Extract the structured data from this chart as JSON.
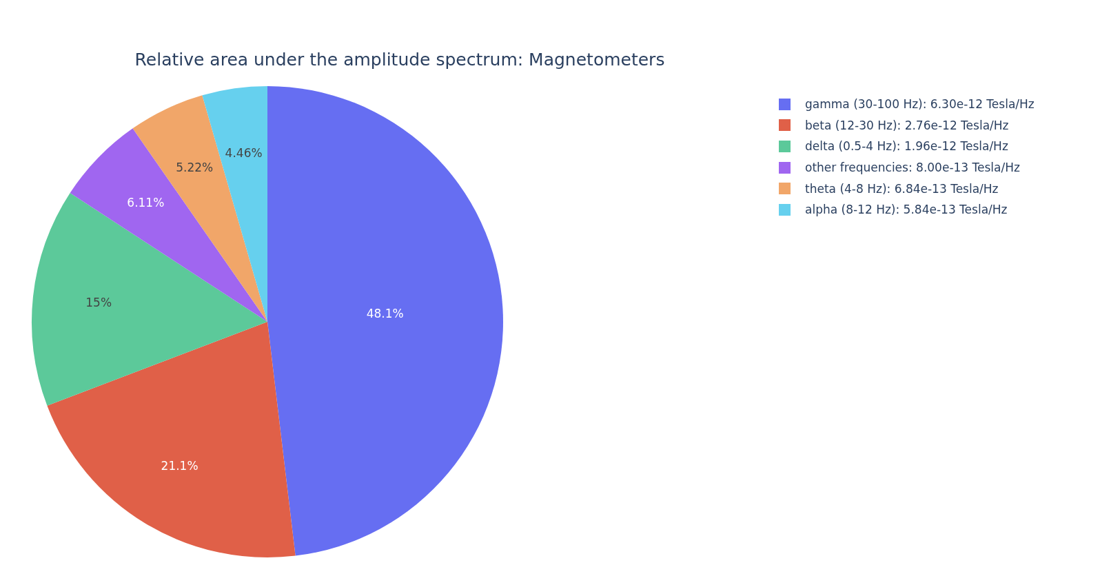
{
  "chart_data": {
    "type": "pie",
    "title": "Relative area under the amplitude spectrum: Magnetometers",
    "categories": [
      "gamma (30-100 Hz): 6.30e-12 Tesla/Hz",
      "beta (12-30 Hz): 2.76e-12 Tesla/Hz",
      "delta (0.5-4 Hz): 1.96e-12 Tesla/Hz",
      "other frequencies: 8.00e-13 Tesla/Hz",
      "theta (4-8 Hz): 6.84e-13 Tesla/Hz",
      "alpha (8-12 Hz): 5.84e-13 Tesla/Hz"
    ],
    "values": [
      48.1,
      21.1,
      15,
      6.11,
      5.22,
      4.46
    ],
    "value_labels": [
      "48.1%",
      "21.1%",
      "15%",
      "6.11%",
      "5.22%",
      "4.46%"
    ],
    "colors": [
      "#666ef2",
      "#e06048",
      "#5cc99a",
      "#a066f0",
      "#f1a669",
      "#66d0ee"
    ],
    "legend": "top right"
  }
}
